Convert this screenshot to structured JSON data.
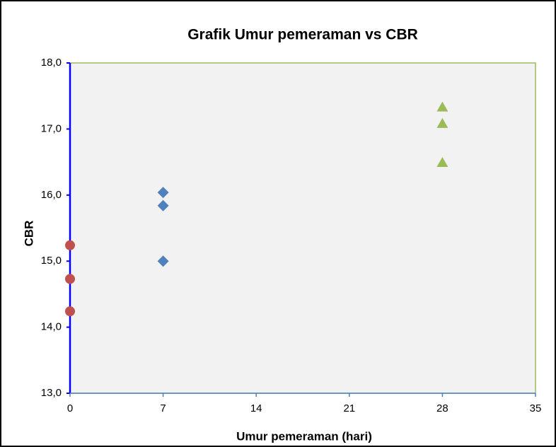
{
  "chart_data": {
    "type": "scatter",
    "title": "Grafik Umur pemeraman vs CBR",
    "xlabel": "Umur pemeraman (hari)",
    "ylabel": "CBR",
    "series": [
      {
        "color": "#4f81bd",
        "marker": "diamond",
        "x": [
          7,
          7,
          7
        ],
        "values": [
          16.04,
          15.84,
          15.0
        ]
      },
      {
        "color": "#c0504d",
        "marker": "circle",
        "x": [
          0,
          0,
          0
        ],
        "values": [
          15.24,
          14.73,
          14.24
        ]
      },
      {
        "color": "#9bbb59",
        "marker": "triangle",
        "x": [
          28,
          28,
          28
        ],
        "values": [
          17.33,
          17.08,
          16.49
        ]
      }
    ],
    "xlim": [
      0,
      35
    ],
    "xticks": [
      0,
      7,
      14,
      21,
      28,
      35
    ],
    "ylim": [
      13,
      18
    ],
    "yticks": [
      {
        "value": 13,
        "label": "13,0"
      },
      {
        "value": 14,
        "label": "14,0"
      },
      {
        "value": 15,
        "label": "15,0"
      },
      {
        "value": 16,
        "label": "16,0"
      },
      {
        "value": 17,
        "label": "17,0"
      },
      {
        "value": 18,
        "label": "18,0"
      }
    ],
    "grid": false
  }
}
